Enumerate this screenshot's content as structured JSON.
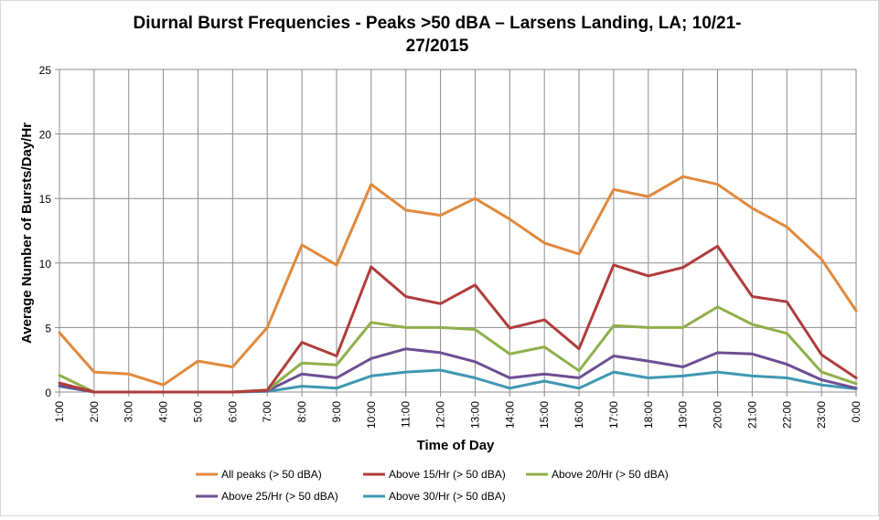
{
  "chart_data": {
    "type": "line",
    "title_line1": "Diurnal Burst Frequencies - Peaks >50 dBA – Larsens Landing, LA; 10/21-",
    "title_line2": "27/2015",
    "xlabel": "Time of Day",
    "ylabel": "Average Number of Bursts/Day/Hr",
    "ylim": [
      0,
      25
    ],
    "yticks": [
      "0",
      "5",
      "10",
      "15",
      "20",
      "25"
    ],
    "categories": [
      "1:00",
      "2:00",
      "3:00",
      "4:00",
      "5:00",
      "6:00",
      "7:00",
      "8:00",
      "9:00",
      "10:00",
      "11:00",
      "12:00",
      "13:00",
      "14:00",
      "15:00",
      "16:00",
      "17:00",
      "18:00",
      "19:00",
      "20:00",
      "21:00",
      "22:00",
      "23:00",
      "0:00"
    ],
    "grid": "vertical and horizontal",
    "legend_position": "bottom",
    "series": [
      {
        "name": "All peaks (> 50 dBA)",
        "color": "#e0893c",
        "values": [
          4.6,
          1.55,
          1.4,
          0.55,
          2.4,
          1.95,
          5.0,
          11.4,
          9.85,
          16.1,
          14.1,
          13.7,
          15.0,
          13.4,
          11.55,
          10.7,
          15.7,
          15.15,
          16.7,
          16.1,
          14.25,
          12.8,
          10.3,
          6.3
        ]
      },
      {
        "name": "Above 15/Hr (> 50 dBA)",
        "color": "#b03c3c",
        "values": [
          0.7,
          0,
          0,
          0,
          0,
          0,
          0.15,
          3.85,
          2.8,
          9.7,
          7.4,
          6.85,
          8.3,
          4.95,
          5.6,
          3.35,
          9.85,
          9.0,
          9.65,
          11.3,
          7.4,
          7.0,
          2.9,
          1.1
        ]
      },
      {
        "name": "Above 20/Hr (> 50 dBA)",
        "color": "#8faf4a",
        "values": [
          1.3,
          0,
          0,
          0,
          0,
          0,
          0.15,
          2.25,
          2.1,
          5.4,
          5.0,
          5.0,
          4.85,
          2.95,
          3.5,
          1.65,
          5.15,
          5.0,
          5.0,
          6.6,
          5.25,
          4.55,
          1.55,
          0.65
        ]
      },
      {
        "name": "Above 25/Hr (> 50 dBA)",
        "color": "#6c4f93",
        "values": [
          0.5,
          0,
          0,
          0,
          0,
          0,
          0.1,
          1.4,
          1.1,
          2.6,
          3.35,
          3.05,
          2.35,
          1.1,
          1.4,
          1.1,
          2.8,
          2.4,
          1.95,
          3.05,
          2.95,
          2.15,
          0.95,
          0.3
        ]
      },
      {
        "name": "Above 30/Hr (> 50 dBA)",
        "color": "#3e97b3",
        "values": [
          0.45,
          0,
          0,
          0,
          0,
          0,
          0.05,
          0.45,
          0.3,
          1.25,
          1.55,
          1.7,
          1.1,
          0.3,
          0.85,
          0.3,
          1.55,
          1.1,
          1.25,
          1.55,
          1.25,
          1.1,
          0.55,
          0.25
        ]
      }
    ]
  }
}
